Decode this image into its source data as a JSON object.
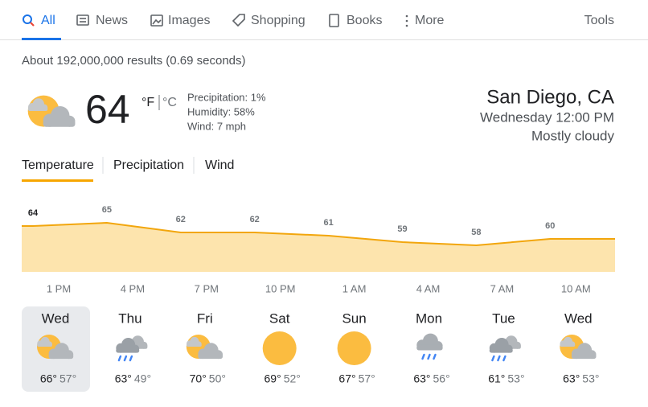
{
  "nav": {
    "tabs": [
      "All",
      "News",
      "Images",
      "Shopping",
      "Books",
      "More"
    ],
    "tools": "Tools"
  },
  "result_stats": "About 192,000,000 results (0.69 seconds)",
  "weather": {
    "temperature": "64",
    "unit_f": "°F",
    "unit_c": "°C",
    "precipitation": "Precipitation: 1%",
    "humidity": "Humidity: 58%",
    "wind": "Wind: 7 mph",
    "location": "San Diego, CA",
    "time": "Wednesday 12:00 PM",
    "condition": "Mostly cloudy",
    "chart_tabs": [
      "Temperature",
      "Precipitation",
      "Wind"
    ],
    "hourly": {
      "type": "line",
      "color": "#f2a60d",
      "fill": "#fde4ad",
      "categories": [
        "1 PM",
        "4 PM",
        "7 PM",
        "10 PM",
        "1 AM",
        "4 AM",
        "7 AM",
        "10 AM"
      ],
      "values": [
        64,
        65,
        62,
        62,
        61,
        59,
        58,
        60
      ]
    },
    "days": [
      {
        "day": "Wed",
        "high": "66°",
        "low": "57°"
      },
      {
        "day": "Thu",
        "high": "63°",
        "low": "49°"
      },
      {
        "day": "Fri",
        "high": "70°",
        "low": "50°"
      },
      {
        "day": "Sat",
        "high": "69°",
        "low": "52°"
      },
      {
        "day": "Sun",
        "high": "67°",
        "low": "57°"
      },
      {
        "day": "Mon",
        "high": "63°",
        "low": "56°"
      },
      {
        "day": "Tue",
        "high": "61°",
        "low": "53°"
      },
      {
        "day": "Wed",
        "high": "63°",
        "low": "53°"
      }
    ]
  }
}
